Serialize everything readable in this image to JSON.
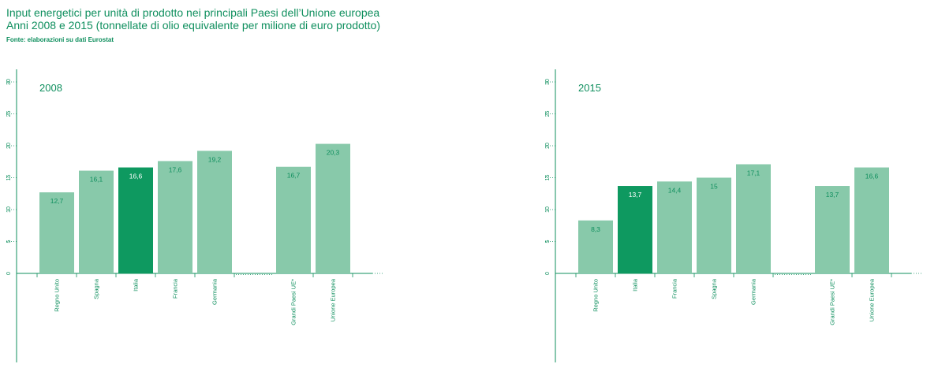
{
  "header": {
    "title_line1": "Input energetici per unità di prodotto nei principali Paesi dell’Unione europea",
    "title_line2": "Anni 2008 e 2015 (tonnellate di olio equivalente per milione di euro prodotto)",
    "source": "Fonte: elaborazioni su dati Eurostat"
  },
  "colors": {
    "text": "#0f8f5e",
    "bar": "#88c9aa",
    "highlight": "#0e9960",
    "axis": "#0f8f5e"
  },
  "chart_data": [
    {
      "type": "bar",
      "title": "2008",
      "ylim": [
        0,
        30
      ],
      "yticks": [
        "0",
        "5",
        "10",
        "15",
        "20",
        "25",
        "30"
      ],
      "categories": [
        "Regno Unito",
        "Spagna",
        "Italia",
        "Francia",
        "Germania",
        "Grandi Paesi UE*",
        "Unione Europea"
      ],
      "values": [
        12.7,
        16.1,
        16.6,
        17.6,
        19.2,
        16.7,
        20.3
      ],
      "labels": [
        "12,7",
        "16,1",
        "16,6",
        "17,6",
        "19,2",
        "16,7",
        "20,3"
      ],
      "highlight": "Italia"
    },
    {
      "type": "bar",
      "title": "2015",
      "ylim": [
        0,
        30
      ],
      "yticks": [
        "0",
        "5",
        "10",
        "15",
        "20",
        "25",
        "30"
      ],
      "categories": [
        "Regno Unito",
        "Italia",
        "Francia",
        "Spagna",
        "Germania",
        "Grandi Paesi UE*",
        "Unione Europea"
      ],
      "values": [
        8.3,
        13.7,
        14.4,
        15,
        17.1,
        13.7,
        16.6
      ],
      "labels": [
        "8,3",
        "13,7",
        "14,4",
        "15",
        "17,1",
        "13,7",
        "16,6"
      ],
      "highlight": "Italia"
    }
  ]
}
